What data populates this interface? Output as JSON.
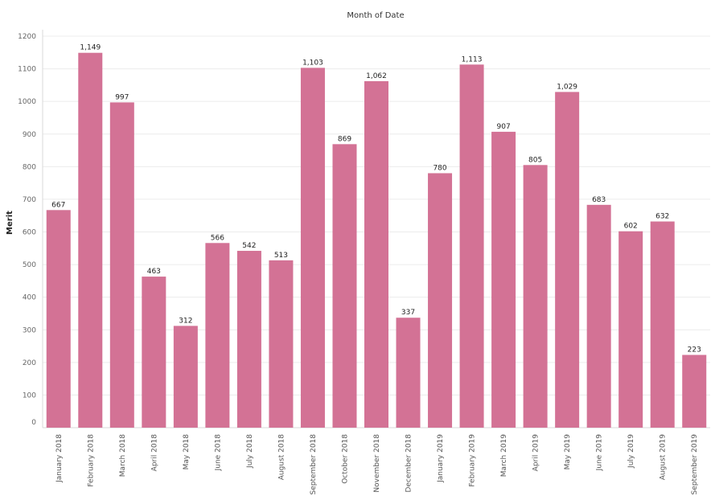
{
  "chart_data": {
    "type": "bar",
    "title": "Month of Date",
    "ylabel": "Merit",
    "xlabel": "",
    "categories": [
      "January 2018",
      "February 2018",
      "March 2018",
      "April 2018",
      "May 2018",
      "June 2018",
      "July 2018",
      "August 2018",
      "September 2018",
      "October 2018",
      "November 2018",
      "December 2018",
      "January 2019",
      "February 2019",
      "March 2019",
      "April 2019",
      "May 2019",
      "June 2019",
      "July 2019",
      "August 2019",
      "September 2019"
    ],
    "values": [
      667,
      1149,
      997,
      463,
      312,
      566,
      542,
      513,
      1103,
      869,
      1062,
      337,
      780,
      1113,
      907,
      805,
      1029,
      683,
      602,
      632,
      223
    ],
    "value_labels": [
      "667",
      "1,149",
      "997",
      "463",
      "312",
      "566",
      "542",
      "513",
      "1,103",
      "869",
      "1,062",
      "337",
      "780",
      "1,113",
      "907",
      "805",
      "1,029",
      "683",
      "602",
      "632",
      "223"
    ],
    "yticks": [
      0,
      100,
      200,
      300,
      400,
      500,
      600,
      700,
      800,
      900,
      1000,
      1100,
      1200
    ],
    "ylim": [
      0,
      1200
    ],
    "grid": true,
    "bar_color": "#d37295"
  }
}
